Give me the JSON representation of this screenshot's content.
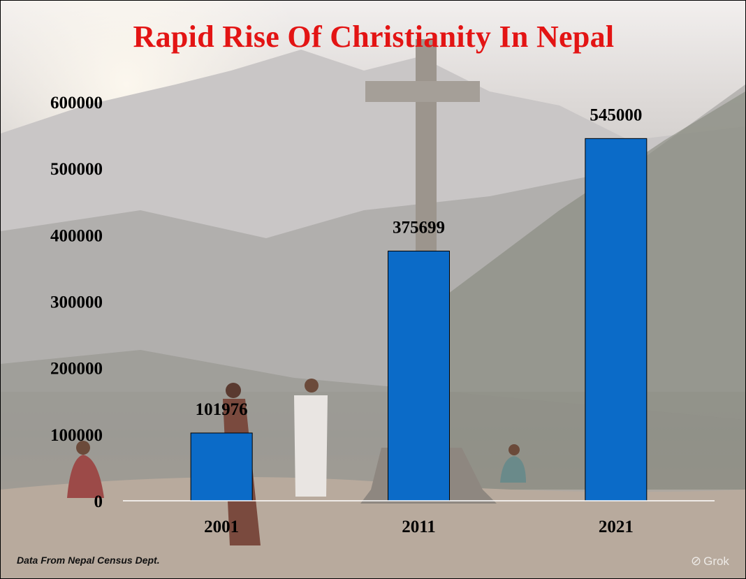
{
  "chart_data": {
    "type": "bar",
    "title": "Rapid Rise Of Christianity In Nepal",
    "categories": [
      "2001",
      "2011",
      "2021"
    ],
    "values": [
      101976,
      375699,
      545000
    ],
    "data_labels": [
      "101976",
      "375699",
      "545000"
    ],
    "ylim": [
      0,
      600000
    ],
    "yticks": [
      "0",
      "100000",
      "200000",
      "300000",
      "400000",
      "500000",
      "600000"
    ],
    "grid": false,
    "legend": "none",
    "bar_color": "#0b6bc8"
  },
  "footer": {
    "source": "Data From Nepal Census Dept.",
    "watermark": "Grok"
  }
}
